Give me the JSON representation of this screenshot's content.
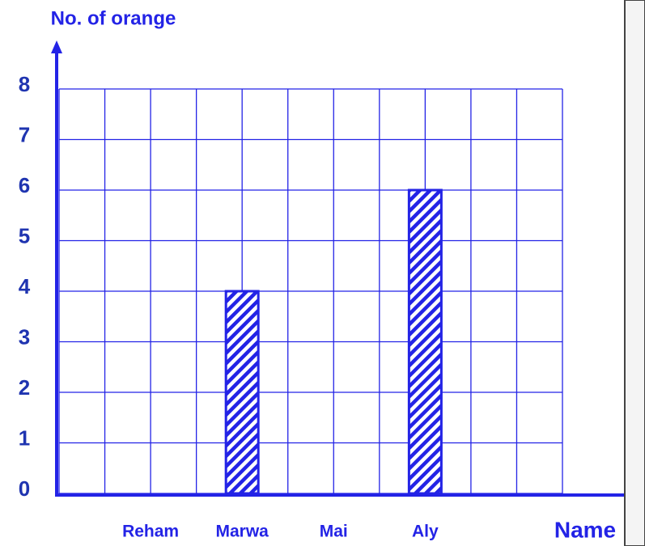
{
  "chart_data": {
    "type": "bar",
    "y_label": "No. of orange",
    "x_label": "Name",
    "categories": [
      "Reham",
      "Marwa",
      "Mai",
      "Aly"
    ],
    "values": [
      null,
      4,
      null,
      6
    ],
    "color": "#2323e6",
    "ylim": [
      0,
      8
    ],
    "yticks": [
      0,
      1,
      2,
      3,
      4,
      5,
      6,
      7,
      8
    ],
    "grid": true
  }
}
